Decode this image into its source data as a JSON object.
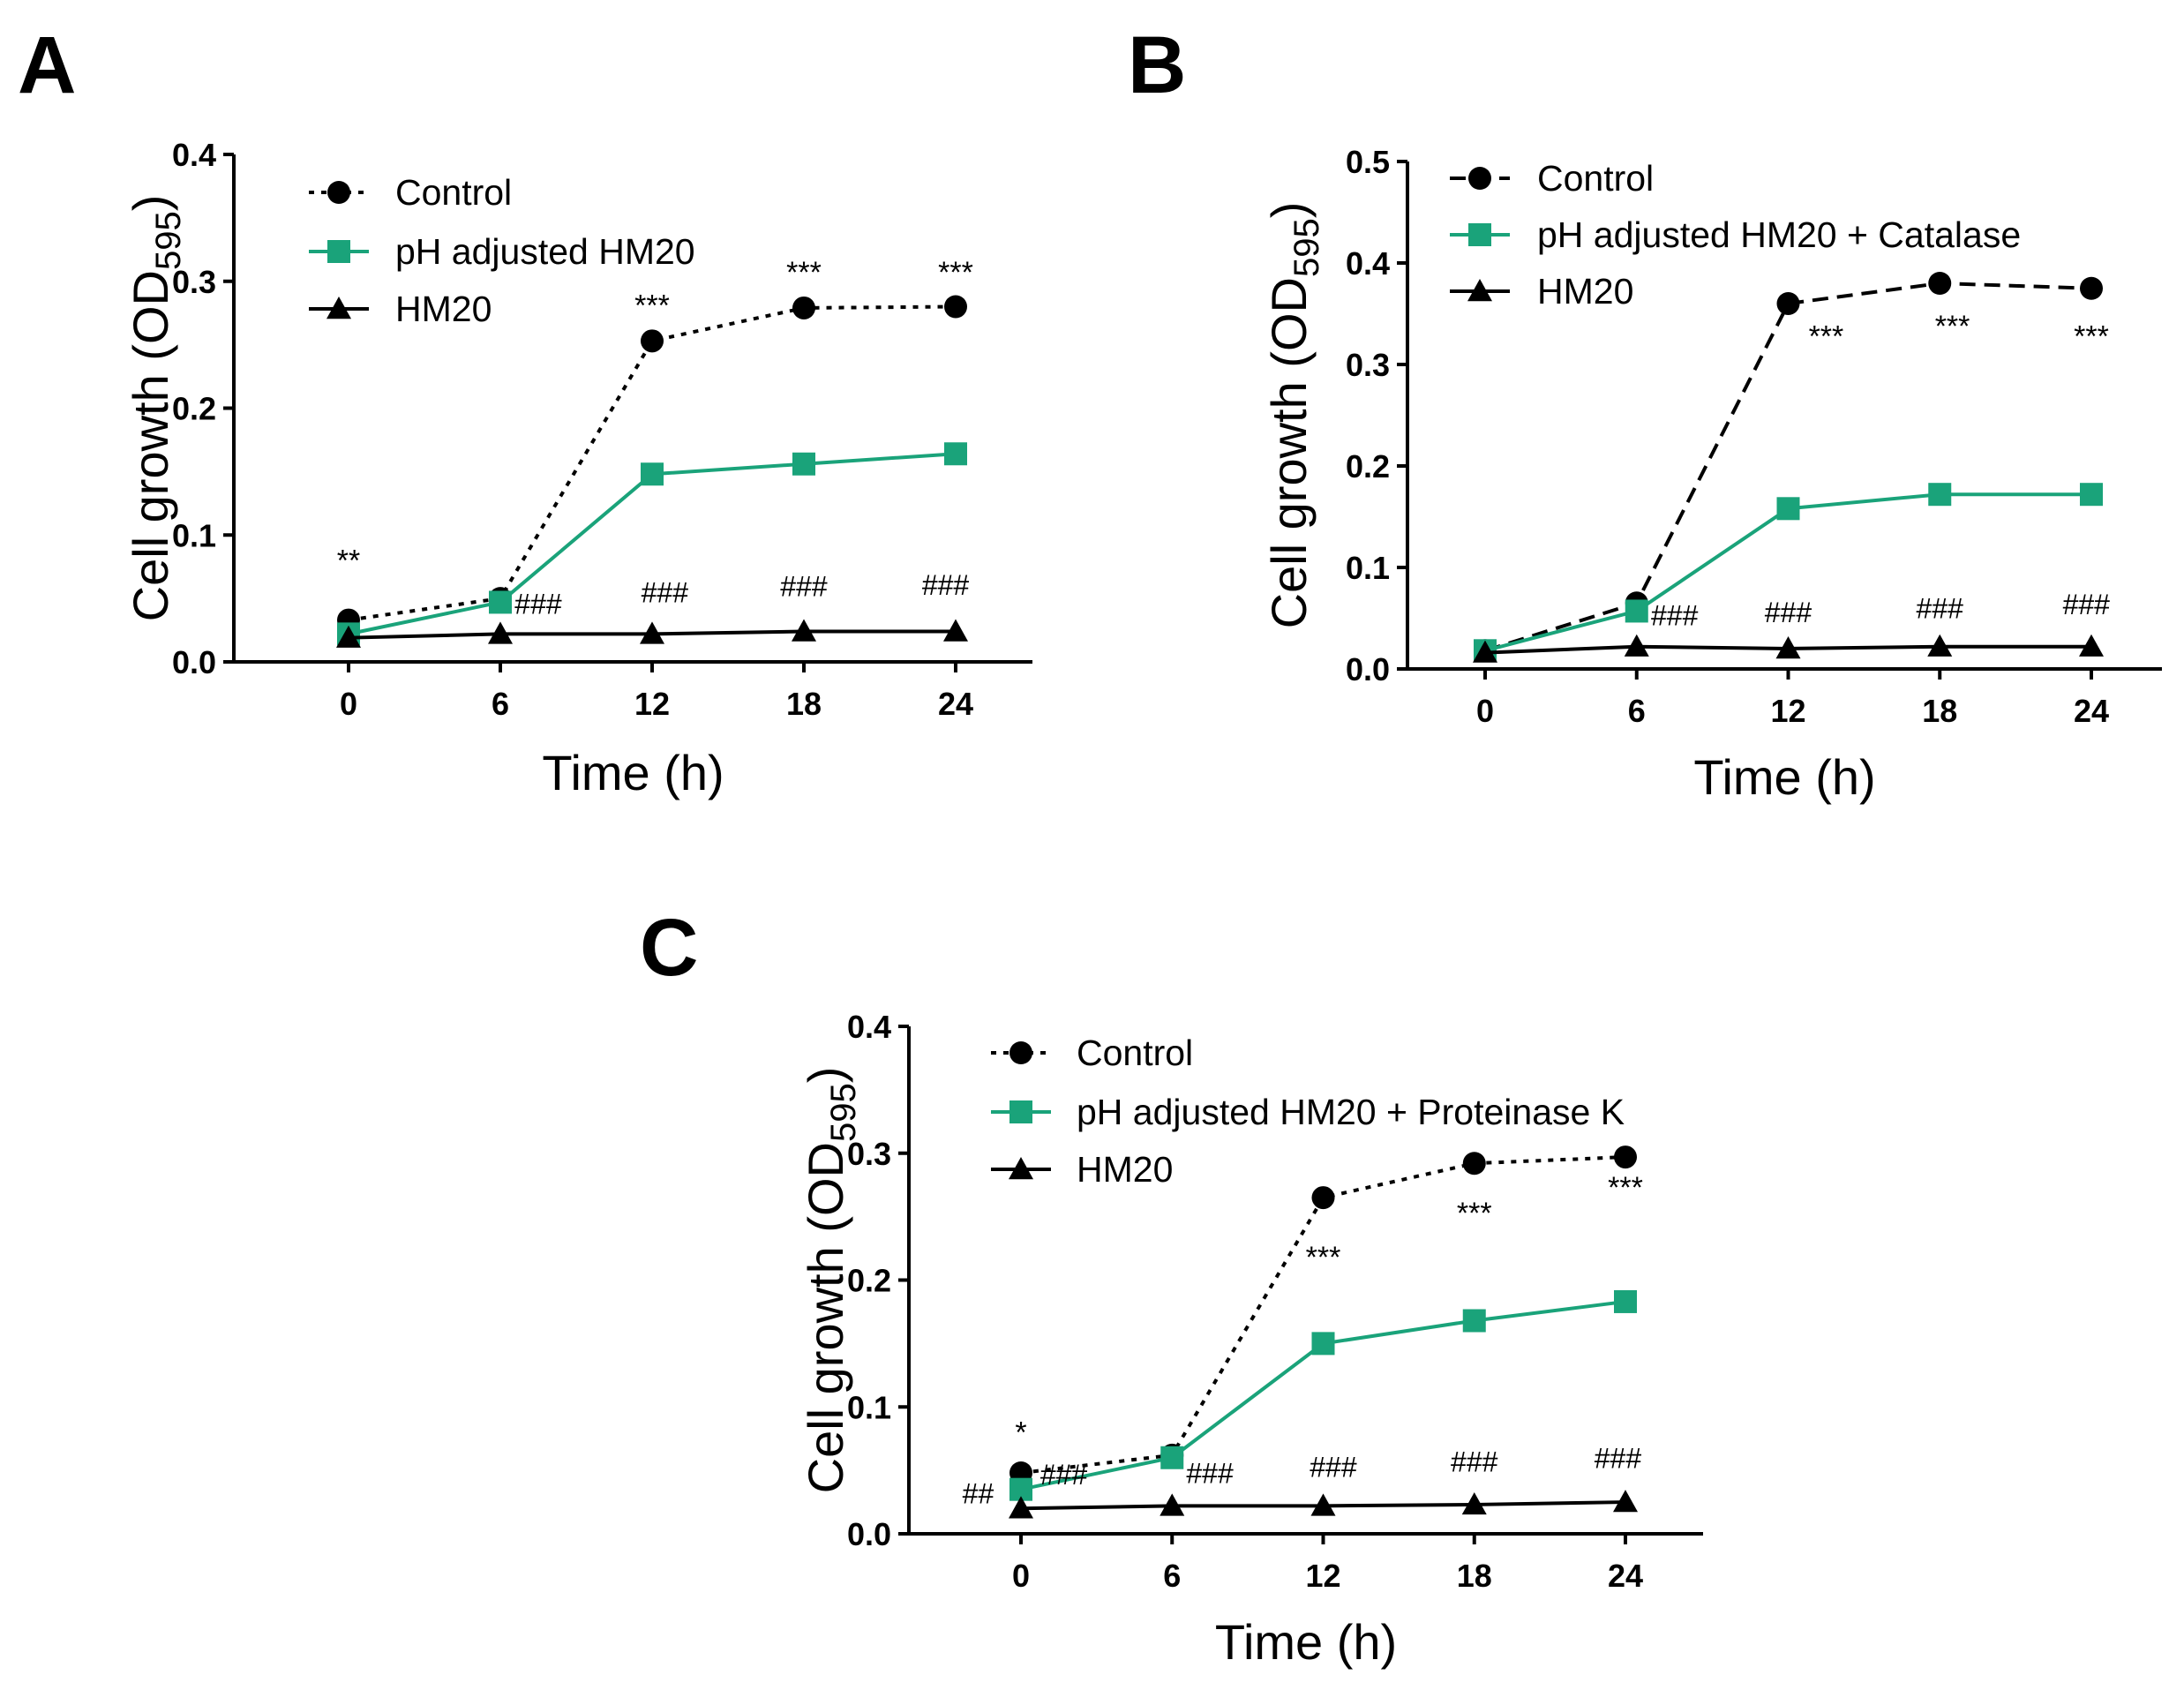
{
  "colors": {
    "control": "#000000",
    "treated": "#1aa37a",
    "hm20": "#000000",
    "axis": "#000000"
  },
  "chart_data": [
    {
      "type": "line",
      "panel": "A",
      "title": "",
      "xlabel": "Time (h)",
      "ylabel_main": "Cell growth (OD",
      "ylabel_sub": "595",
      "ylabel_close": ")",
      "x": [
        0,
        6,
        12,
        18,
        24
      ],
      "xticks": [
        "0",
        "6",
        "12",
        "18",
        "24"
      ],
      "ylim": [
        0,
        0.4
      ],
      "yticks": [
        "0.0",
        "0.1",
        "0.2",
        "0.3",
        "0.4"
      ],
      "series": [
        {
          "name": "Control",
          "marker": "circle",
          "style": "dotted",
          "values": [
            0.033,
            0.05,
            0.253,
            0.279,
            0.28
          ]
        },
        {
          "name": "pH adjusted HM20",
          "marker": "square",
          "style": "solid-green",
          "values": [
            0.022,
            0.047,
            0.148,
            0.156,
            0.164
          ]
        },
        {
          "name": "HM20",
          "marker": "triangle",
          "style": "solid",
          "values": [
            0.019,
            0.022,
            0.022,
            0.024,
            0.024
          ]
        }
      ],
      "annotations": [
        {
          "text": "**",
          "x": 0,
          "y": 0.072,
          "kind": "star"
        },
        {
          "text": "***",
          "x": 12,
          "y": 0.273,
          "kind": "star"
        },
        {
          "text": "***",
          "x": 18,
          "y": 0.299,
          "kind": "star"
        },
        {
          "text": "***",
          "x": 24,
          "y": 0.299,
          "kind": "star"
        },
        {
          "text": "###",
          "x": 7.5,
          "y": 0.038,
          "kind": "hash"
        },
        {
          "text": "###",
          "x": 12.5,
          "y": 0.047,
          "kind": "hash"
        },
        {
          "text": "###",
          "x": 18,
          "y": 0.052,
          "kind": "hash"
        },
        {
          "text": "###",
          "x": 23.6,
          "y": 0.053,
          "kind": "hash"
        }
      ]
    },
    {
      "type": "line",
      "panel": "B",
      "title": "",
      "xlabel": "Time (h)",
      "ylabel_main": "Cell growth (OD",
      "ylabel_sub": "595",
      "ylabel_close": ")",
      "x": [
        0,
        6,
        12,
        18,
        24
      ],
      "xticks": [
        "0",
        "6",
        "12",
        "18",
        "24"
      ],
      "ylim": [
        0,
        0.5
      ],
      "yticks": [
        "0.0",
        "0.1",
        "0.2",
        "0.3",
        "0.4",
        "0.5"
      ],
      "series": [
        {
          "name": "Control",
          "marker": "circle",
          "style": "dashed",
          "values": [
            0.018,
            0.065,
            0.36,
            0.38,
            0.375
          ]
        },
        {
          "name": "pH adjusted HM20 + Catalase",
          "marker": "square",
          "style": "solid-green",
          "values": [
            0.018,
            0.057,
            0.158,
            0.172,
            0.172
          ]
        },
        {
          "name": "HM20",
          "marker": "triangle",
          "style": "solid",
          "values": [
            0.016,
            0.022,
            0.02,
            0.022,
            0.022
          ]
        }
      ],
      "annotations": [
        {
          "text": "***",
          "x": 13.5,
          "y": 0.318,
          "kind": "star"
        },
        {
          "text": "***",
          "x": 18.5,
          "y": 0.328,
          "kind": "star"
        },
        {
          "text": "***",
          "x": 24,
          "y": 0.318,
          "kind": "star"
        },
        {
          "text": "###",
          "x": 7.5,
          "y": 0.043,
          "kind": "hash"
        },
        {
          "text": "###",
          "x": 12,
          "y": 0.046,
          "kind": "hash"
        },
        {
          "text": "###",
          "x": 18,
          "y": 0.05,
          "kind": "hash"
        },
        {
          "text": "###",
          "x": 23.8,
          "y": 0.054,
          "kind": "hash"
        }
      ]
    },
    {
      "type": "line",
      "panel": "C",
      "title": "",
      "xlabel": "Time (h)",
      "ylabel_main": "Cell growth (OD",
      "ylabel_sub": "595",
      "ylabel_close": ")",
      "x": [
        0,
        6,
        12,
        18,
        24
      ],
      "xticks": [
        "0",
        "6",
        "12",
        "18",
        "24"
      ],
      "ylim": [
        0,
        0.4
      ],
      "yticks": [
        "0.0",
        "0.1",
        "0.2",
        "0.3",
        "0.4"
      ],
      "series": [
        {
          "name": "Control",
          "marker": "circle",
          "style": "dotted",
          "values": [
            0.048,
            0.062,
            0.265,
            0.292,
            0.297
          ]
        },
        {
          "name": "pH adjusted HM20 + Proteinase K",
          "marker": "square",
          "style": "solid-green",
          "values": [
            0.035,
            0.06,
            0.15,
            0.168,
            0.183
          ]
        },
        {
          "name": "HM20",
          "marker": "triangle",
          "style": "solid",
          "values": [
            0.02,
            0.022,
            0.022,
            0.023,
            0.025
          ]
        }
      ],
      "annotations": [
        {
          "text": "*",
          "x": 0,
          "y": 0.072,
          "kind": "star"
        },
        {
          "text": "***",
          "x": 12,
          "y": 0.21,
          "kind": "star"
        },
        {
          "text": "***",
          "x": 18,
          "y": 0.245,
          "kind": "star"
        },
        {
          "text": "***",
          "x": 24,
          "y": 0.265,
          "kind": "star"
        },
        {
          "text": "##",
          "x": -1.7,
          "y": 0.024,
          "kind": "hash"
        },
        {
          "text": "###",
          "x": 1.7,
          "y": 0.039,
          "kind": "hash"
        },
        {
          "text": "###",
          "x": 7.5,
          "y": 0.04,
          "kind": "hash"
        },
        {
          "text": "###",
          "x": 12.4,
          "y": 0.045,
          "kind": "hash"
        },
        {
          "text": "###",
          "x": 18,
          "y": 0.049,
          "kind": "hash"
        },
        {
          "text": "###",
          "x": 23.7,
          "y": 0.052,
          "kind": "hash"
        }
      ]
    }
  ]
}
